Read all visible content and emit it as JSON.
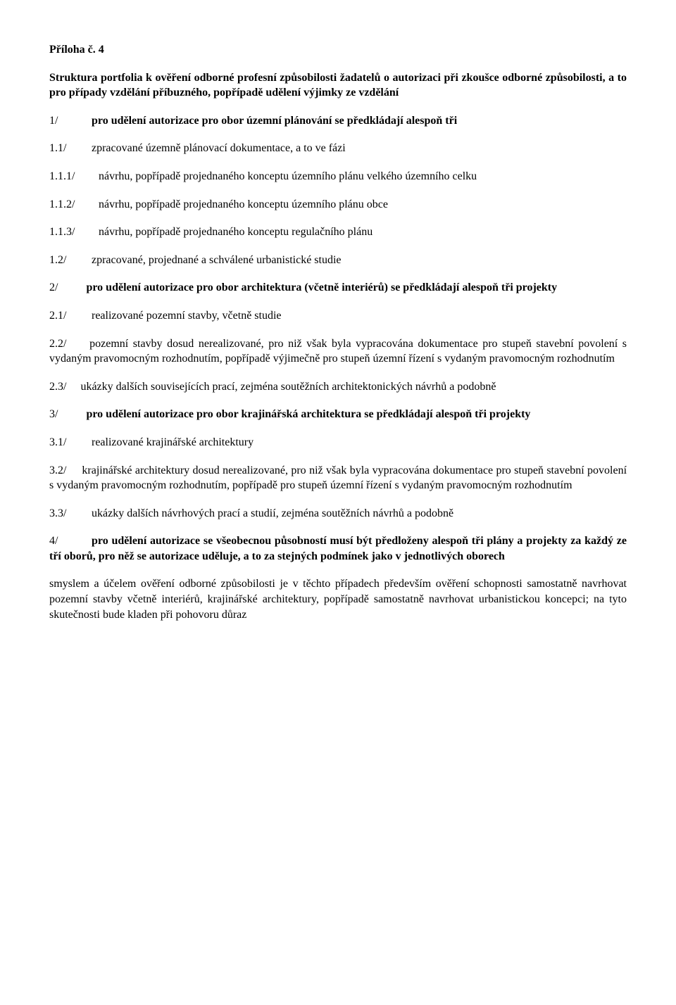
{
  "title": "Příloha č. 4",
  "intro": "Struktura portfolia k ověření odborné profesní způsobilosti žadatelů o autorizaci při zkoušce odborné způsobilosti, a to pro případy vzdělání příbuzného, popřípadě udělení výjimky ze vzdělání",
  "s1": {
    "num": "1/",
    "txt": "pro udělení autorizace pro obor územní plánování se předkládají alespoň tři"
  },
  "s1_1": {
    "num": "1.1/",
    "txt": "zpracované územně plánovací dokumentace, a to ve fázi"
  },
  "s1_1_1": {
    "num": "1.1.1/",
    "txt": "návrhu, popřípadě projednaného konceptu územního plánu velkého územního celku"
  },
  "s1_1_2": {
    "num": "1.1.2/",
    "txt": "návrhu, popřípadě projednaného konceptu územního plánu obce"
  },
  "s1_1_3": {
    "num": "1.1.3/",
    "txt": "návrhu, popřípadě projednaného konceptu regulačního plánu"
  },
  "s1_2": {
    "num": "1.2/",
    "txt": "zpracované, projednané a schválené urbanistické studie"
  },
  "s2": {
    "num": "2/",
    "lead": "pro udělení autorizace pro obor architektura (včetně interiérů) se předkládají alespoň tři projekty"
  },
  "s2_1": {
    "num": "2.1/",
    "txt": "realizované pozemní stavby, včetně studie"
  },
  "s2_2": {
    "num": "2.2/",
    "txt": "pozemní stavby dosud nerealizované, pro niž však byla vypracována dokumentace pro stupeň stavební povolení s vydaným pravomocným rozhodnutím, popřípadě výjimečně pro stupeň územní řízení s vydaným pravomocným rozhodnutím"
  },
  "s2_3": {
    "num": "2.3/",
    "txt": "ukázky dalších souvisejících prací, zejména soutěžních architektonických návrhů a podobně"
  },
  "s3": {
    "num": "3/",
    "lead": "pro udělení autorizace pro obor krajinářská architektura se předkládají alespoň tři projekty"
  },
  "s3_1": {
    "num": "3.1/",
    "txt": "realizované krajinářské architektury"
  },
  "s3_2": {
    "num": "3.2/",
    "txt": "krajinářské architektury dosud nerealizované, pro niž však byla vypracována dokumentace pro stupeň stavební povolení s vydaným pravomocným rozhodnutím, popřípadě pro stupeň územní řízení s vydaným pravomocným rozhodnutím"
  },
  "s3_3": {
    "num": "3.3/",
    "txt": "ukázky dalších návrhových prací a studií, zejména soutěžních návrhů a podobně"
  },
  "s4": {
    "num": "4/",
    "lead": "pro udělení autorizace se všeobecnou působností musí být předloženy alespoň tři plány a projekty za každý ze tří oborů, pro něž se autorizace uděluje, a to za stejných podmínek jako v jednotlivých oborech"
  },
  "closing": "smyslem a účelem ověření odborné způsobilosti je v těchto případech především ověření schopnosti samostatně navrhovat pozemní stavby včetně interiérů, krajinářské architektury, popřípadě samostatně navrhovat urbanistickou koncepci; na tyto skutečnosti bude kladen při pohovoru důraz"
}
